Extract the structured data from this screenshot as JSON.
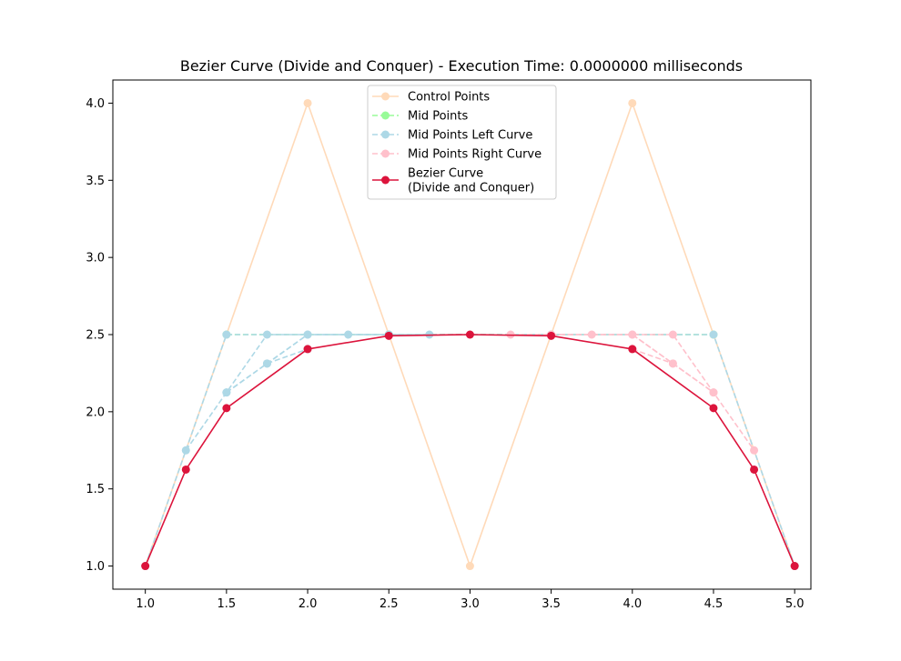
{
  "chart_data": {
    "type": "line",
    "title": "Bezier Curve (Divide and Conquer) - Execution Time: 0.0000000 milliseconds",
    "xlabel": "",
    "ylabel": "",
    "xlim": [
      0.8,
      5.1
    ],
    "ylim": [
      0.85,
      4.15
    ],
    "xticks": [
      "1.0",
      "1.5",
      "2.0",
      "2.5",
      "3.0",
      "3.5",
      "4.0",
      "4.5",
      "5.0"
    ],
    "yticks": [
      "1.0",
      "1.5",
      "2.0",
      "2.5",
      "3.0",
      "3.5",
      "4.0"
    ],
    "grid": false,
    "legend_position": "top-center",
    "series": [
      {
        "name": "Control Points",
        "color": "#ffdab9",
        "linestyle": "solid",
        "points": [
          [
            1.0,
            1.0
          ],
          [
            2.0,
            4.0
          ],
          [
            3.0,
            1.0
          ],
          [
            4.0,
            4.0
          ],
          [
            5.0,
            1.0
          ]
        ]
      },
      {
        "name": "Mid Points",
        "color": "#98fb98",
        "linestyle": "dashed",
        "points": [
          [
            1.5,
            2.5
          ],
          [
            2.5,
            2.5
          ],
          [
            3.5,
            2.5
          ],
          [
            4.5,
            2.5
          ]
        ]
      },
      {
        "name": "Mid Points Left Curve",
        "color": "#add8e6",
        "linestyle": "dashed",
        "segments": [
          [
            [
              1.0,
              1.0
            ],
            [
              1.5,
              2.5
            ],
            [
              2.5,
              2.5
            ],
            [
              3.5,
              2.5
            ],
            [
              4.5,
              2.5
            ],
            [
              5.0,
              1.0
            ]
          ],
          [
            [
              1.25,
              1.75
            ],
            [
              1.75,
              2.5
            ],
            [
              2.25,
              2.5
            ],
            [
              2.75,
              2.5
            ]
          ],
          [
            [
              1.5,
              2.125
            ],
            [
              2.0,
              2.5
            ],
            [
              2.5,
              2.5
            ]
          ],
          [
            [
              1.5,
              2.125
            ],
            [
              1.75,
              2.3125
            ],
            [
              2.0,
              2.5
            ]
          ],
          [
            [
              1.75,
              2.3125
            ],
            [
              2.0,
              2.4062
            ]
          ]
        ]
      },
      {
        "name": "Mid Points Right Curve",
        "color": "#ffc0cb",
        "linestyle": "dashed",
        "segments": [
          [
            [
              3.25,
              2.5
            ],
            [
              3.75,
              2.5
            ],
            [
              4.25,
              2.5
            ],
            [
              4.75,
              1.75
            ]
          ],
          [
            [
              3.5,
              2.5
            ],
            [
              4.0,
              2.5
            ],
            [
              4.5,
              2.125
            ]
          ],
          [
            [
              4.0,
              2.5
            ],
            [
              4.25,
              2.3125
            ],
            [
              4.5,
              2.125
            ]
          ],
          [
            [
              4.0,
              2.4062
            ],
            [
              4.25,
              2.3125
            ]
          ]
        ]
      },
      {
        "name": "Bezier Curve\n(Divide and Conquer)",
        "color": "#dc143c",
        "linestyle": "solid",
        "points": [
          [
            1.0,
            1.0
          ],
          [
            1.25,
            1.625
          ],
          [
            1.5,
            2.0234
          ],
          [
            2.0,
            2.4062
          ],
          [
            2.5,
            2.4922
          ],
          [
            3.0,
            2.5
          ],
          [
            3.5,
            2.4922
          ],
          [
            4.0,
            2.4062
          ],
          [
            4.5,
            2.0234
          ],
          [
            4.75,
            1.625
          ],
          [
            5.0,
            1.0
          ]
        ]
      }
    ]
  }
}
